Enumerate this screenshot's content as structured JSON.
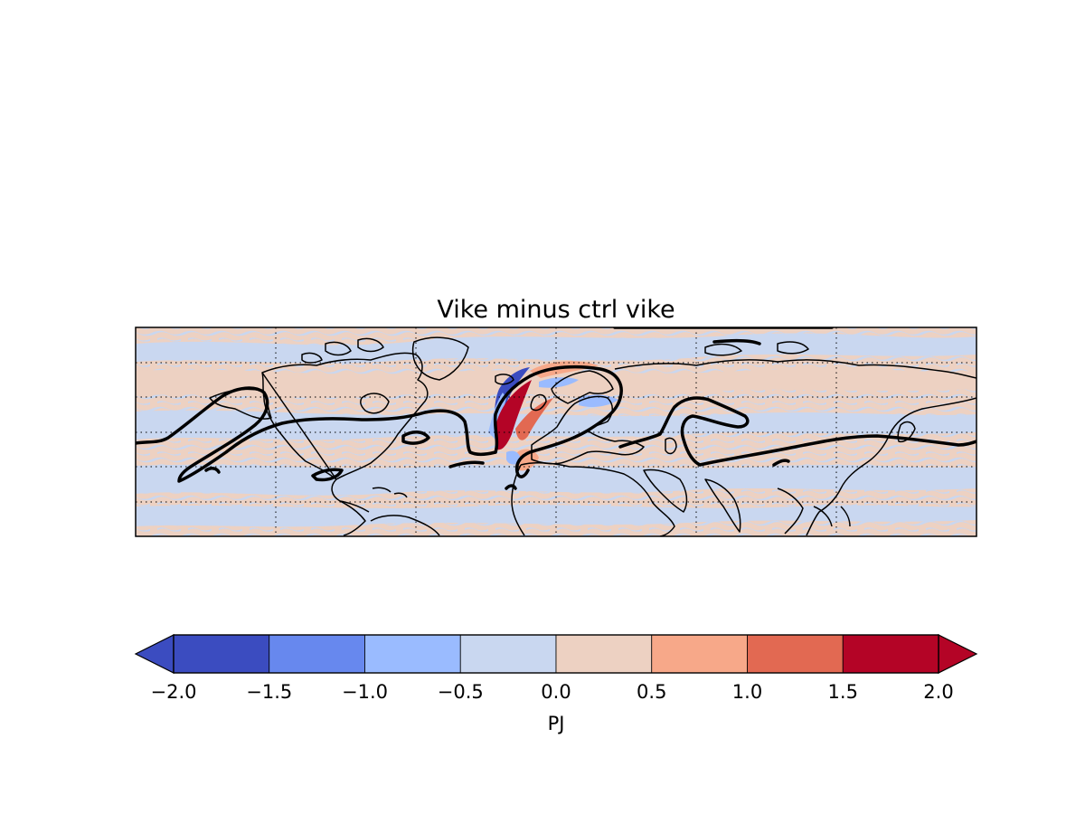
{
  "title": "Vike minus ctrl vike",
  "colorbar": {
    "label": "PJ",
    "ticks": [
      "−2.0",
      "−1.5",
      "−1.0",
      "−0.5",
      "0.0",
      "0.5",
      "1.0",
      "1.5",
      "2.0"
    ],
    "levels": [
      -2.0,
      -1.5,
      -1.0,
      -0.5,
      0.0,
      0.5,
      1.0,
      1.5,
      2.0
    ],
    "colors": [
      "#3b4cc0",
      "#6788ee",
      "#9abbff",
      "#c9d7f0",
      "#edd1c2",
      "#f7a889",
      "#e26952",
      "#b40426"
    ],
    "extend": "both",
    "under_color": "#3b4cc0",
    "over_color": "#b40426"
  },
  "map": {
    "projection": "cylindrical",
    "lon_range": [
      -180,
      180
    ],
    "lat_range": [
      -10,
      80
    ],
    "gridlines": "dotted",
    "meridians": [
      -120,
      -60,
      0,
      60,
      120
    ],
    "parallels": [
      0,
      15,
      30,
      45,
      60,
      75
    ],
    "background_positive": "#edd1c2",
    "background_negative": "#c9d7f0"
  }
}
